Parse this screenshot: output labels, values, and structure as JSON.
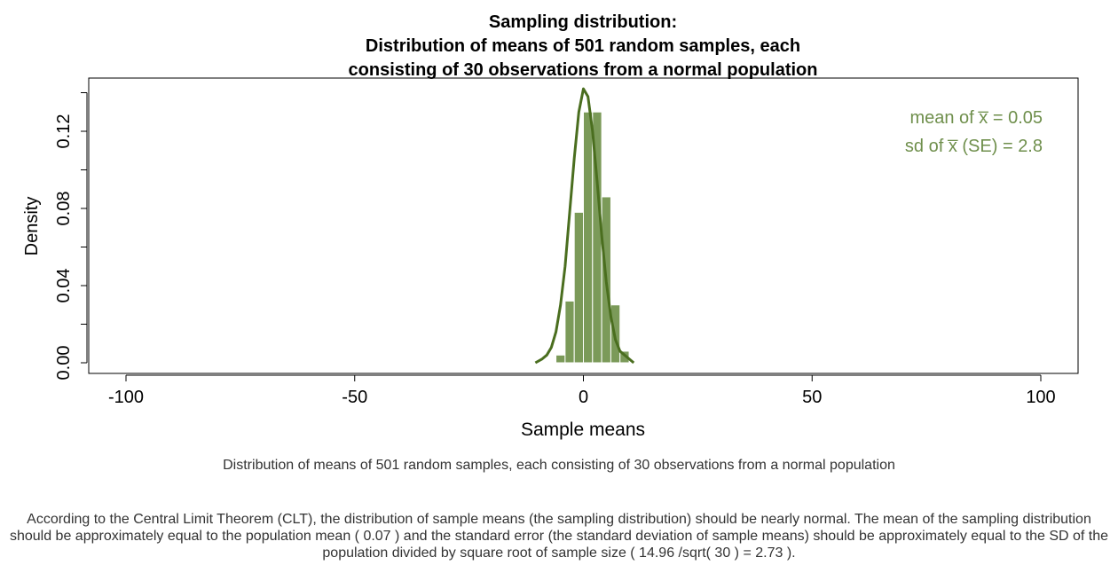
{
  "chart_data": {
    "type": "bar",
    "title_lines": [
      "Sampling distribution:",
      "Distribution of means of 501 random samples, each",
      "consisting of 30 observations from a normal population"
    ],
    "xlabel": "Sample means",
    "ylabel": "Density",
    "xlim": [
      -100,
      100
    ],
    "ylim": [
      0,
      0.14
    ],
    "x_ticks": [
      -100,
      -50,
      0,
      50,
      100
    ],
    "x_tick_labels": [
      "-100",
      "-50",
      "0",
      "50",
      "100"
    ],
    "y_ticks": [
      0,
      0.04,
      0.08,
      0.12
    ],
    "y_tick_labels": [
      "0.00",
      "0.04",
      "0.08",
      "0.12"
    ],
    "histogram": {
      "bin_width": 2,
      "bins": [
        {
          "x0": -8,
          "x1": -6,
          "density": 0.0
        },
        {
          "x0": -6,
          "x1": -4,
          "density": 0.004
        },
        {
          "x0": -4,
          "x1": -2,
          "density": 0.032
        },
        {
          "x0": -2,
          "x1": 0,
          "density": 0.078
        },
        {
          "x0": 0,
          "x1": 2,
          "density": 0.13
        },
        {
          "x0": 2,
          "x1": 4,
          "density": 0.13
        },
        {
          "x0": 4,
          "x1": 6,
          "density": 0.086
        },
        {
          "x0": 6,
          "x1": 8,
          "density": 0.03
        },
        {
          "x0": 8,
          "x1": 10,
          "density": 0.006
        }
      ]
    },
    "density_curve": {
      "x": [
        -10.5,
        -9,
        -8,
        -7,
        -6,
        -5,
        -4,
        -3,
        -2,
        -1,
        0,
        1,
        2,
        3,
        4,
        5,
        6,
        7,
        8,
        9,
        10,
        11
      ],
      "y": [
        0.0,
        0.002,
        0.004,
        0.008,
        0.016,
        0.03,
        0.05,
        0.078,
        0.106,
        0.13,
        0.142,
        0.138,
        0.12,
        0.094,
        0.066,
        0.042,
        0.024,
        0.012,
        0.006,
        0.004,
        0.002,
        0.0
      ]
    },
    "annotations": [
      {
        "text": "mean of  x̅ = 0.05"
      },
      {
        "text": "sd of  x̅ (SE) = 2.8"
      }
    ],
    "grid": false,
    "colors": {
      "bar_fill": "#7b9a59",
      "bar_edge": "#ffffff",
      "curve": "#4a6e1f",
      "annotation": "#6f8f4c",
      "axis": "#000000"
    }
  },
  "captions": {
    "figure": "Distribution of means of 501 random samples, each consisting of 30 observations from a normal population",
    "clt": "According to the Central Limit Theorem (CLT), the distribution of sample means (the sampling distribution) should be nearly normal. The mean of the sampling distribution should be approximately equal to the population mean ( 0.07 ) and the standard error (the standard deviation of sample means) should be approximately equal to the SD of the population divided by square root of sample size ( 14.96 /sqrt( 30 ) = 2.73 )."
  }
}
